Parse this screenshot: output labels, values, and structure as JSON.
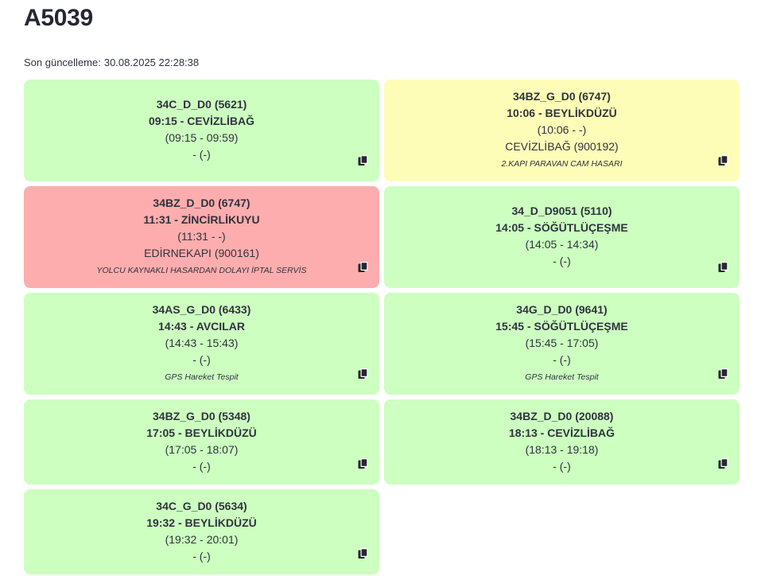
{
  "header": {
    "title": "A5039",
    "updated_label": "Son güncelleme:",
    "updated_value": "30.08.2025 22:28:38"
  },
  "icons": {
    "copy": "copy-icon"
  },
  "colors": {
    "green": "#ccffc0",
    "yellow": "#fdfdb8",
    "red": "#fdadad"
  },
  "cards": [
    {
      "status": "green",
      "route": "34C_D_D0 (5621)",
      "departure": "09:15 - CEVİZLİBAĞ",
      "times": "(09:15 - 09:59)",
      "stop": "- (-)",
      "note": ""
    },
    {
      "status": "yellow",
      "route": "34BZ_G_D0 (6747)",
      "departure": "10:06 - BEYLİKDÜZÜ",
      "times": "(10:06 - -)",
      "stop": "CEVİZLİBAĞ (900192)",
      "note": "2.KAPI PARAVAN CAM HASARI"
    },
    {
      "status": "red",
      "route": "34BZ_D_D0 (6747)",
      "departure": "11:31 - ZİNCİRLİKUYU",
      "times": "(11:31 - -)",
      "stop": "EDİRNEKAPI (900161)",
      "note": "YOLCU KAYNAKLI HASARDAN DOLAYI İPTAL SERVİS"
    },
    {
      "status": "green",
      "route": "34_D_D9051 (5110)",
      "departure": "14:05 - SÖĞÜTLÜÇEŞME",
      "times": "(14:05 - 14:34)",
      "stop": "- (-)",
      "note": ""
    },
    {
      "status": "green",
      "route": "34AS_G_D0 (6433)",
      "departure": "14:43 - AVCILAR",
      "times": "(14:43 - 15:43)",
      "stop": "- (-)",
      "note": "GPS Hareket Tespit"
    },
    {
      "status": "green",
      "route": "34G_D_D0 (9641)",
      "departure": "15:45 - SÖĞÜTLÜÇEŞME",
      "times": "(15:45 - 17:05)",
      "stop": "- (-)",
      "note": "GPS Hareket Tespit"
    },
    {
      "status": "green",
      "route": "34BZ_G_D0 (5348)",
      "departure": "17:05 - BEYLİKDÜZÜ",
      "times": "(17:05 - 18:07)",
      "stop": "- (-)",
      "note": ""
    },
    {
      "status": "green",
      "route": "34BZ_D_D0 (20088)",
      "departure": "18:13 - CEVİZLİBAĞ",
      "times": "(18:13 - 19:18)",
      "stop": "- (-)",
      "note": ""
    },
    {
      "status": "green",
      "route": "34C_G_D0 (5634)",
      "departure": "19:32 - BEYLİKDÜZÜ",
      "times": "(19:32 - 20:01)",
      "stop": "- (-)",
      "note": ""
    }
  ]
}
